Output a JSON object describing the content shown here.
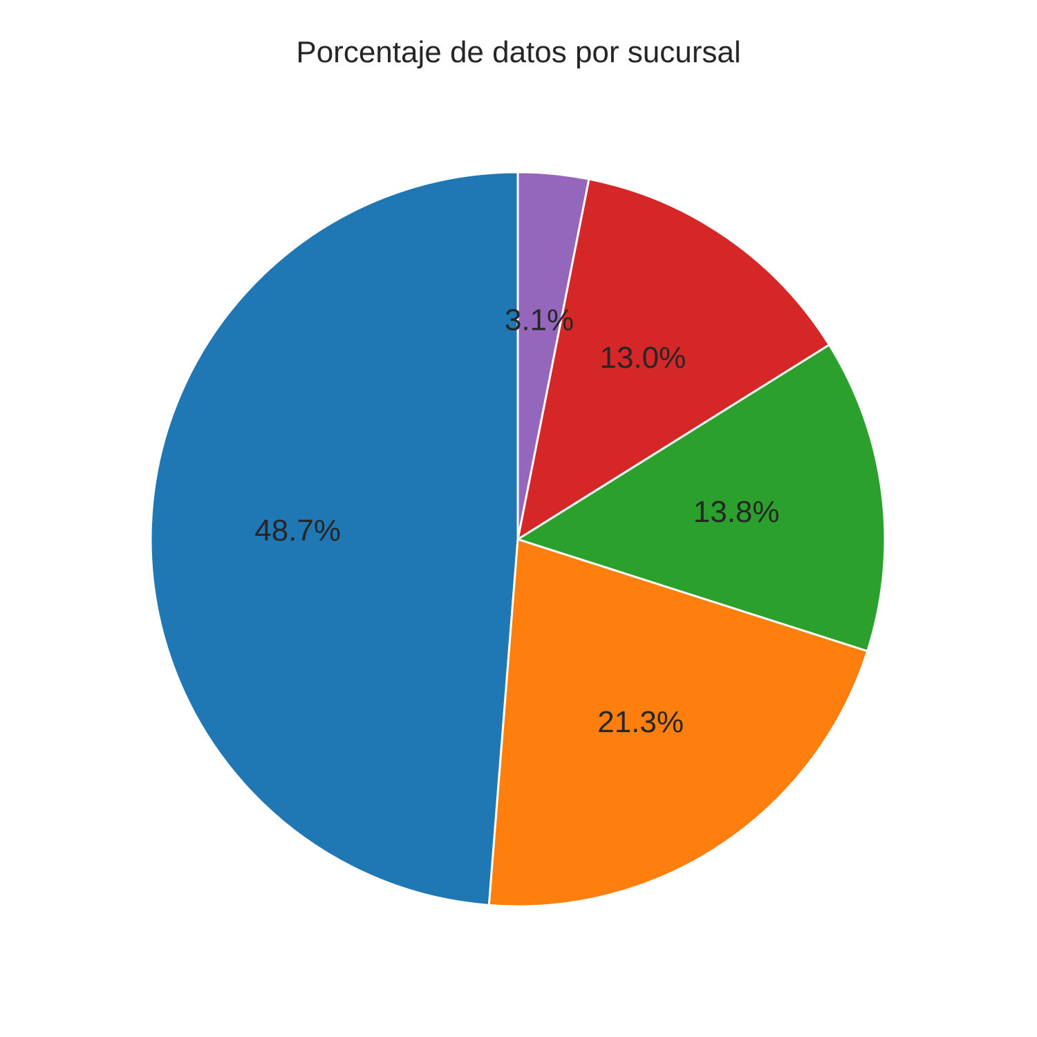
{
  "chart_data": {
    "type": "pie",
    "title": "Porcentaje de datos por sucursal",
    "start_angle_deg": 90,
    "direction": "counterclockwise",
    "slices": [
      {
        "value": 48.7,
        "label": "48.7%",
        "color": "#1f77b4"
      },
      {
        "value": 21.3,
        "label": "21.3%",
        "color": "#ff7f0e"
      },
      {
        "value": 13.8,
        "label": "13.8%",
        "color": "#2ca02c"
      },
      {
        "value": 13.0,
        "label": "13.0%",
        "color": "#d62728"
      },
      {
        "value": 3.1,
        "label": "3.1%",
        "color": "#9467bd"
      }
    ],
    "wedge_edge_color": "#ffffff",
    "legend": "none",
    "grid": false
  }
}
